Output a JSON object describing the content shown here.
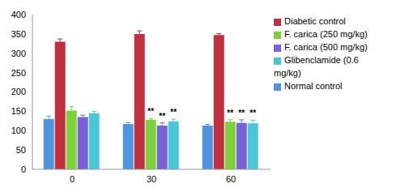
{
  "chart_data": {
    "type": "bar",
    "categories": [
      "0",
      "30",
      "60"
    ],
    "ylim": [
      0,
      400
    ],
    "yticks": [
      0,
      50,
      100,
      150,
      200,
      250,
      300,
      350,
      400
    ],
    "grid": false,
    "legend": "upper right",
    "series": [
      {
        "name": "Normal control",
        "color": "#4f94df",
        "values": [
          130,
          117,
          113
        ],
        "errors": [
          8,
          4,
          3
        ],
        "annotations": [
          null,
          null,
          null
        ]
      },
      {
        "name": "Diabetic control",
        "color": "#c1303f",
        "values": [
          330,
          350,
          347
        ],
        "errors": [
          7,
          8,
          4
        ],
        "annotations": [
          null,
          null,
          null
        ]
      },
      {
        "name": "F. carica (250 mg/kg)",
        "color": "#7fd13b",
        "values": [
          152,
          128,
          123
        ],
        "errors": [
          10,
          3,
          5
        ],
        "annotations": [
          null,
          "**",
          "**"
        ]
      },
      {
        "name": "F. carica (500 mg/kg)",
        "color": "#7b61d8",
        "values": [
          135,
          113,
          120
        ],
        "errors": [
          5,
          7,
          8
        ],
        "annotations": [
          null,
          "**",
          "**"
        ]
      },
      {
        "name": "Glibenclamide (0.6 mg/kg)",
        "color": "#4bc6d6",
        "values": [
          145,
          124,
          119
        ],
        "errors": [
          5,
          6,
          8
        ],
        "annotations": [
          null,
          "**",
          "**"
        ]
      }
    ]
  }
}
